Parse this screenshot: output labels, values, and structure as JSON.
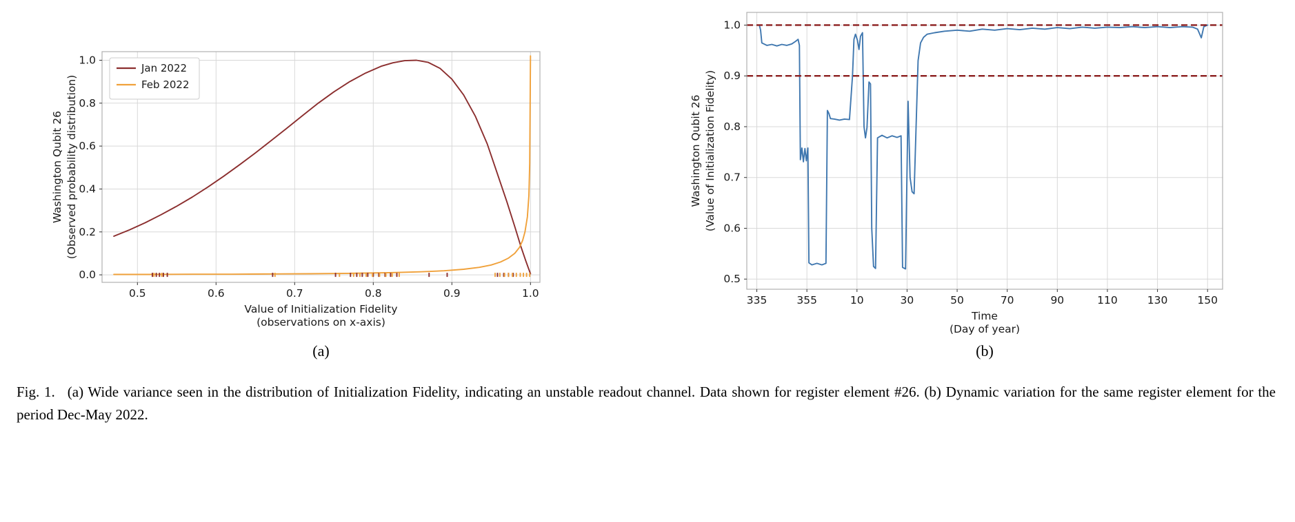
{
  "caption": {
    "label": "Fig. 1.",
    "text": "(a) Wide variance seen in the distribution of Initialization Fidelity, indicating an unstable readout channel. Data shown for register element #26. (b) Dynamic variation for the same register element for the period Dec-May 2022."
  },
  "subplots": {
    "a_label": "(a)",
    "b_label": "(b)"
  },
  "colors": {
    "jan_line": "#8b2e2e",
    "feb_line": "#f0a13a",
    "timeseries_line": "#3f77af",
    "threshold_dashed": "#8b1d1d"
  },
  "chart_data": [
    {
      "id": "fidelity-distribution",
      "type": "line",
      "xlabel_lines": [
        "Value of Initialization Fidelity",
        "(observations on x-axis)"
      ],
      "ylabel_lines": [
        "Washington Qubit 26",
        "(Observed probability distribution)"
      ],
      "xlim": [
        0.455,
        1.012
      ],
      "ylim": [
        -0.035,
        1.04
      ],
      "xticks": [
        0.5,
        0.6,
        0.7,
        0.8,
        0.9,
        1.0
      ],
      "yticks": [
        0.0,
        0.2,
        0.4,
        0.6,
        0.8,
        1.0
      ],
      "x_decimals": 1,
      "y_decimals": 1,
      "grid": true,
      "legend": {
        "position": "upper-left"
      },
      "series": [
        {
          "name": "Jan 2022",
          "color": "#8b2e2e",
          "points": [
            [
              0.47,
              0.18
            ],
            [
              0.49,
              0.21
            ],
            [
              0.51,
              0.243
            ],
            [
              0.53,
              0.28
            ],
            [
              0.55,
              0.32
            ],
            [
              0.57,
              0.363
            ],
            [
              0.59,
              0.41
            ],
            [
              0.61,
              0.46
            ],
            [
              0.63,
              0.513
            ],
            [
              0.65,
              0.568
            ],
            [
              0.67,
              0.625
            ],
            [
              0.69,
              0.683
            ],
            [
              0.71,
              0.742
            ],
            [
              0.73,
              0.8
            ],
            [
              0.75,
              0.853
            ],
            [
              0.77,
              0.9
            ],
            [
              0.79,
              0.94
            ],
            [
              0.81,
              0.972
            ],
            [
              0.825,
              0.988
            ],
            [
              0.84,
              0.998
            ],
            [
              0.855,
              1.0
            ],
            [
              0.87,
              0.99
            ],
            [
              0.885,
              0.962
            ],
            [
              0.9,
              0.912
            ],
            [
              0.915,
              0.838
            ],
            [
              0.93,
              0.738
            ],
            [
              0.945,
              0.61
            ],
            [
              0.958,
              0.47
            ],
            [
              0.97,
              0.34
            ],
            [
              0.98,
              0.225
            ],
            [
              0.988,
              0.13
            ],
            [
              0.994,
              0.065
            ],
            [
              0.998,
              0.025
            ],
            [
              1.0,
              0.005
            ]
          ]
        },
        {
          "name": "Feb 2022",
          "color": "#f0a13a",
          "points": [
            [
              0.47,
              0.002
            ],
            [
              0.52,
              0.002
            ],
            [
              0.57,
              0.003
            ],
            [
              0.62,
              0.003
            ],
            [
              0.67,
              0.004
            ],
            [
              0.72,
              0.005
            ],
            [
              0.77,
              0.007
            ],
            [
              0.82,
              0.01
            ],
            [
              0.86,
              0.014
            ],
            [
              0.89,
              0.019
            ],
            [
              0.915,
              0.026
            ],
            [
              0.935,
              0.035
            ],
            [
              0.95,
              0.046
            ],
            [
              0.962,
              0.06
            ],
            [
              0.972,
              0.078
            ],
            [
              0.98,
              0.1
            ],
            [
              0.986,
              0.128
            ],
            [
              0.99,
              0.16
            ],
            [
              0.993,
              0.2
            ],
            [
              0.996,
              0.27
            ],
            [
              0.998,
              0.37
            ],
            [
              0.999,
              0.52
            ],
            [
              1.0,
              1.02
            ]
          ]
        }
      ],
      "rug_marks": [
        {
          "series": "Jan 2022",
          "color": "#8b2e2e",
          "x": [
            0.519,
            0.524,
            0.528,
            0.533,
            0.538,
            0.672,
            0.752,
            0.771,
            0.779,
            0.786,
            0.793,
            0.8,
            0.807,
            0.815,
            0.822,
            0.83,
            0.871,
            0.894,
            0.958,
            0.966,
            0.972,
            0.978
          ]
        },
        {
          "series": "Feb 2022",
          "color": "#f0a13a",
          "x": [
            0.521,
            0.531,
            0.675,
            0.757,
            0.775,
            0.783,
            0.791,
            0.799,
            0.808,
            0.816,
            0.824,
            0.833,
            0.955,
            0.961,
            0.967,
            0.972,
            0.977,
            0.982,
            0.987,
            0.991,
            0.995,
            0.999
          ]
        }
      ]
    },
    {
      "id": "fidelity-time-series",
      "type": "line",
      "xlabel_lines": [
        "Time",
        "(Day of year)"
      ],
      "ylabel_lines": [
        "Washington Qubit 26",
        "(Value of Initialization Fidelity)"
      ],
      "xlim": [
        -4,
        186
      ],
      "ylim": [
        0.48,
        1.025
      ],
      "xticks": [
        0,
        20,
        40,
        60,
        80,
        100,
        120,
        140,
        160,
        180
      ],
      "xtick_labels": [
        "335",
        "355",
        "10",
        "30",
        "50",
        "70",
        "90",
        "110",
        "130",
        "150"
      ],
      "yticks": [
        0.5,
        0.6,
        0.7,
        0.8,
        0.9,
        1.0
      ],
      "y_decimals": 1,
      "grid": true,
      "reference_lines": [
        {
          "y": 1.0,
          "color": "#8b1d1d",
          "style": "dashed"
        },
        {
          "y": 0.9,
          "color": "#8b1d1d",
          "style": "dashed"
        }
      ],
      "series": [
        {
          "color": "#3f77af",
          "points": [
            [
              1.0,
              1.0
            ],
            [
              1.5,
              0.99
            ],
            [
              2,
              0.965
            ],
            [
              4,
              0.96
            ],
            [
              6,
              0.962
            ],
            [
              8,
              0.959
            ],
            [
              10,
              0.962
            ],
            [
              12,
              0.96
            ],
            [
              14,
              0.963
            ],
            [
              15.5,
              0.968
            ],
            [
              16.5,
              0.972
            ],
            [
              17,
              0.96
            ],
            [
              17.4,
              0.735
            ],
            [
              18,
              0.758
            ],
            [
              18.6,
              0.731
            ],
            [
              19.2,
              0.757
            ],
            [
              19.8,
              0.733
            ],
            [
              20.4,
              0.758
            ],
            [
              20.8,
              0.532
            ],
            [
              22,
              0.528
            ],
            [
              24,
              0.531
            ],
            [
              26,
              0.528
            ],
            [
              27.6,
              0.531
            ],
            [
              28.2,
              0.832
            ],
            [
              28.8,
              0.826
            ],
            [
              29.4,
              0.816
            ],
            [
              31,
              0.815
            ],
            [
              33,
              0.813
            ],
            [
              35,
              0.815
            ],
            [
              37,
              0.814
            ],
            [
              38.2,
              0.9
            ],
            [
              38.8,
              0.972
            ],
            [
              39.4,
              0.982
            ],
            [
              40.2,
              0.97
            ],
            [
              40.8,
              0.952
            ],
            [
              41.4,
              0.978
            ],
            [
              42.2,
              0.985
            ],
            [
              42.8,
              0.8
            ],
            [
              43.4,
              0.778
            ],
            [
              44,
              0.798
            ],
            [
              44.8,
              0.888
            ],
            [
              45.4,
              0.884
            ],
            [
              45.9,
              0.6
            ],
            [
              46.6,
              0.525
            ],
            [
              47.4,
              0.521
            ],
            [
              48.2,
              0.778
            ],
            [
              50,
              0.783
            ],
            [
              52,
              0.778
            ],
            [
              54,
              0.782
            ],
            [
              56,
              0.779
            ],
            [
              57.6,
              0.782
            ],
            [
              58.2,
              0.523
            ],
            [
              59.4,
              0.52
            ],
            [
              60.4,
              0.85
            ],
            [
              61.2,
              0.7
            ],
            [
              62,
              0.672
            ],
            [
              62.8,
              0.668
            ],
            [
              63.6,
              0.8
            ],
            [
              64.4,
              0.93
            ],
            [
              65.4,
              0.965
            ],
            [
              66.6,
              0.976
            ],
            [
              68,
              0.982
            ],
            [
              71,
              0.985
            ],
            [
              75,
              0.988
            ],
            [
              80,
              0.99
            ],
            [
              85,
              0.988
            ],
            [
              90,
              0.992
            ],
            [
              95,
              0.99
            ],
            [
              100,
              0.993
            ],
            [
              105,
              0.991
            ],
            [
              110,
              0.994
            ],
            [
              115,
              0.992
            ],
            [
              120,
              0.995
            ],
            [
              125,
              0.993
            ],
            [
              130,
              0.996
            ],
            [
              135,
              0.994
            ],
            [
              140,
              0.996
            ],
            [
              145,
              0.995
            ],
            [
              150,
              0.997
            ],
            [
              155,
              0.995
            ],
            [
              160,
              0.997
            ],
            [
              165,
              0.995
            ],
            [
              170,
              0.997
            ],
            [
              174,
              0.996
            ],
            [
              176,
              0.992
            ],
            [
              177.5,
              0.975
            ],
            [
              178.5,
              0.997
            ],
            [
              180,
              1.0
            ]
          ]
        }
      ]
    }
  ]
}
